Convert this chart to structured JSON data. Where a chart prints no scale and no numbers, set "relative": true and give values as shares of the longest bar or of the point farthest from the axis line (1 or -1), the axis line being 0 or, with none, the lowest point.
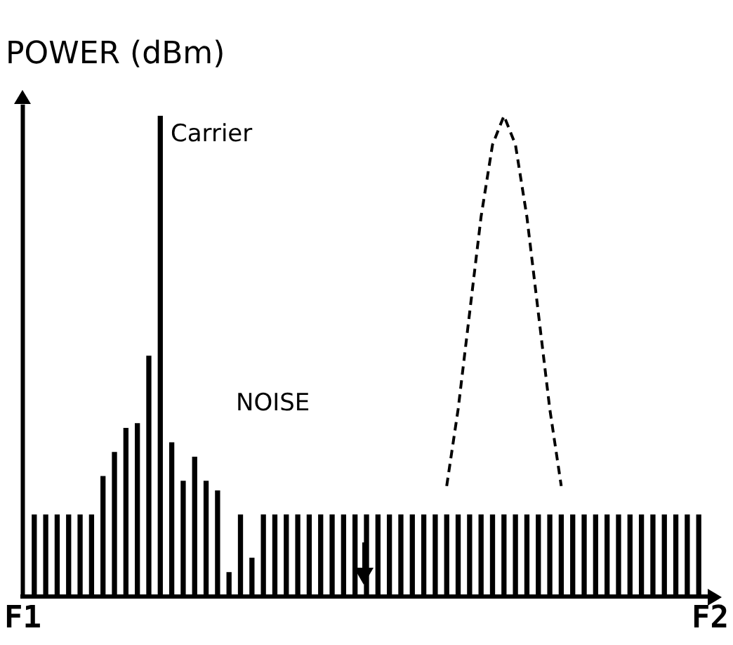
{
  "chart_data": {
    "type": "bar",
    "relative": true,
    "ylabel": "POWER (dBm)",
    "annotations": [
      "Carrier",
      "NOISE"
    ],
    "categories": [
      "F1",
      null,
      null,
      null,
      null,
      null,
      null,
      null,
      null,
      null,
      null,
      null,
      null,
      null,
      null,
      null,
      null,
      null,
      null,
      null,
      null,
      null,
      null,
      null,
      null,
      null,
      null,
      null,
      null,
      null,
      null,
      null,
      null,
      null,
      null,
      null,
      null,
      null,
      null,
      null,
      null,
      null,
      null,
      null,
      null,
      null,
      null,
      null,
      null,
      null,
      null,
      null,
      null,
      null,
      null,
      null,
      null,
      null,
      null,
      null,
      "F2"
    ],
    "series": [
      {
        "color": "#000000",
        "values": [
          null,
          0.17,
          0.17,
          0.17,
          0.17,
          0.17,
          0.17,
          0.25,
          0.3,
          0.35,
          0.36,
          0.5,
          1,
          0.32,
          0.24,
          0.29,
          0.24,
          0.22,
          0.05,
          0.17,
          0.08,
          0.17,
          0.17,
          0.17,
          0.17,
          0.17,
          0.17,
          0.17,
          0.17,
          0.17,
          0.17,
          0.17,
          0.17,
          0.17,
          0.17,
          0.17,
          0.17,
          0.17,
          0.17,
          0.17,
          0.17,
          0.17,
          0.17,
          0.17,
          0.17,
          0.17,
          0.17,
          0.17,
          0.17,
          0.17,
          0.17,
          0.17,
          0.17,
          0.17,
          0.17,
          0.17,
          0.17,
          0.17,
          0.17,
          0.17,
          null
        ]
      },
      {
        "type": "line",
        "color": "#000000",
        "line_style": "dashed",
        "values": [
          null,
          null,
          null,
          null,
          null,
          null,
          null,
          null,
          null,
          null,
          null,
          null,
          null,
          null,
          null,
          null,
          null,
          null,
          null,
          null,
          null,
          null,
          null,
          null,
          null,
          null,
          null,
          null,
          null,
          null,
          null,
          null,
          null,
          null,
          null,
          null,
          null,
          0.23,
          0.39,
          0.59,
          0.79,
          0.94,
          1,
          0.94,
          0.79,
          0.59,
          0.39,
          0.23,
          null,
          null,
          null,
          null,
          null,
          null,
          null,
          null,
          null,
          null,
          null,
          null,
          null
        ]
      }
    ],
    "marker": "none",
    "grid": false,
    "legend": false,
    "tick_labels": "x"
  }
}
